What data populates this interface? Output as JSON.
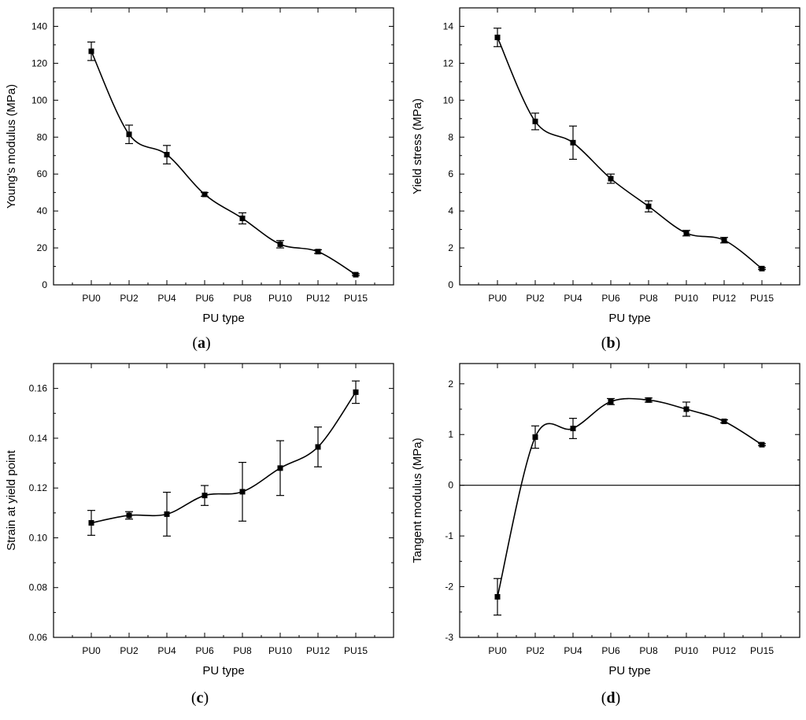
{
  "chart_data": [
    {
      "panel": "a",
      "type": "line",
      "caption_letter": "a",
      "xlabel": "PU type",
      "ylabel": "Young's modulus (MPa)",
      "categories": [
        "PU0",
        "PU2",
        "PU4",
        "PU6",
        "PU8",
        "PU10",
        "PU12",
        "PU15"
      ],
      "values": [
        126.5,
        81.5,
        70.5,
        49,
        36,
        22,
        18,
        5.5
      ],
      "errors": [
        5,
        5,
        5,
        1,
        3,
        2,
        1,
        0.5
      ],
      "ylim": [
        0,
        150
      ],
      "yticks": [
        0,
        20,
        40,
        60,
        80,
        100,
        120,
        140
      ],
      "zero_line": false
    },
    {
      "panel": "b",
      "type": "line",
      "caption_letter": "b",
      "xlabel": "PU type",
      "ylabel": "Yield stress (MPa)",
      "categories": [
        "PU0",
        "PU2",
        "PU4",
        "PU6",
        "PU8",
        "PU10",
        "PU12",
        "PU15"
      ],
      "values": [
        13.4,
        8.85,
        7.7,
        5.75,
        4.25,
        2.8,
        2.42,
        0.88
      ],
      "errors": [
        0.5,
        0.45,
        0.9,
        0.25,
        0.3,
        0.15,
        0.15,
        0.05
      ],
      "ylim": [
        0,
        15
      ],
      "yticks": [
        0,
        2,
        4,
        6,
        8,
        10,
        12,
        14
      ],
      "zero_line": false
    },
    {
      "panel": "c",
      "type": "line",
      "caption_letter": "c",
      "xlabel": "PU type",
      "ylabel": "Strain at yield point",
      "categories": [
        "PU0",
        "PU2",
        "PU4",
        "PU6",
        "PU8",
        "PU10",
        "PU12",
        "PU15"
      ],
      "values": [
        0.106,
        0.109,
        0.1095,
        0.117,
        0.1185,
        0.128,
        0.1365,
        0.1585
      ],
      "errors": [
        0.005,
        0.0015,
        0.0088,
        0.004,
        0.0118,
        0.011,
        0.008,
        0.0045
      ],
      "ylim": [
        0.06,
        0.17
      ],
      "yticks": [
        0.06,
        0.08,
        0.1,
        0.12,
        0.14,
        0.16
      ],
      "tick_decimals": 2,
      "zero_line": false
    },
    {
      "panel": "d",
      "type": "line",
      "caption_letter": "d",
      "xlabel": "PU type",
      "ylabel": "Tangent modulus (MPa)",
      "categories": [
        "PU0",
        "PU2",
        "PU4",
        "PU6",
        "PU8",
        "PU10",
        "PU12",
        "PU15"
      ],
      "values": [
        -2.2,
        0.95,
        1.12,
        1.65,
        1.68,
        1.5,
        1.26,
        0.8
      ],
      "errors": [
        0.36,
        0.22,
        0.2,
        0.06,
        0.04,
        0.14,
        0.03,
        0.02
      ],
      "ylim": [
        -3,
        2.4
      ],
      "yticks": [
        -3,
        -2,
        -1,
        0,
        1,
        2
      ],
      "zero_line": true
    }
  ]
}
